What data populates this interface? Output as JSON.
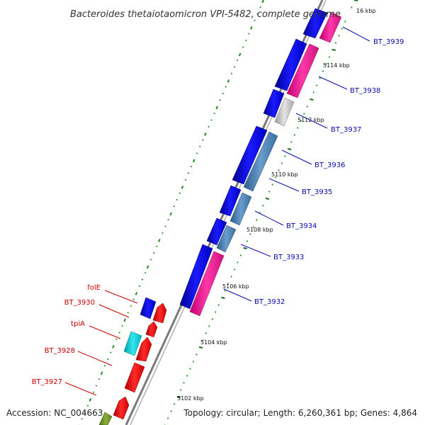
{
  "title": "Bacteroides thetaiotaomicron VPI-5482, complete genome",
  "footer": {
    "accession": "Accession: NC_004663",
    "summary": "Topology: circular; Length: 6,260,361 bp; Genes: 4,864"
  },
  "scale_labels": [
    {
      "text": "16 kbp",
      "t": 0.04
    },
    {
      "text": "5114 kbp",
      "t": 0.165
    },
    {
      "text": "5112 kbp",
      "t": 0.3
    },
    {
      "text": "5110 kbp",
      "t": 0.44
    },
    {
      "text": "5108 kbp",
      "t": 0.58
    },
    {
      "text": "5106 kbp",
      "t": 0.72
    },
    {
      "text": "5104 kbp",
      "t": 0.86
    },
    {
      "text": "5102 kbp",
      "t": 1.0
    }
  ],
  "genes": [
    {
      "name": "BT_3939",
      "side": "right",
      "t0": 0.0,
      "t1": 0.1,
      "color": "#0a0af0",
      "partner_color": "#ff1493"
    },
    {
      "name": "BT_3938",
      "side": "right",
      "t0": 0.11,
      "t1": 0.23,
      "color": "#0a0af0",
      "partner_color": "#ff1493"
    },
    {
      "name": "BT_3937",
      "side": "right",
      "t0": 0.24,
      "t1": 0.31,
      "color": "#0a0af0",
      "partner_color": "#c8c8c8"
    },
    {
      "name": "BT_3936",
      "side": "right",
      "t0": 0.33,
      "t1": 0.46,
      "color": "#0a0af0",
      "partner_color": "#4682b4"
    },
    {
      "name": "BT_3935",
      "side": "right",
      "t0": 0.47,
      "t1": 0.54,
      "color": "#0a0af0",
      "partner_color": "#4682b4"
    },
    {
      "name": "BT_3934",
      "side": "right",
      "t0": 0.55,
      "t1": 0.62,
      "color": "#0a0af0",
      "partner_color": "#4682b4"
    },
    {
      "name": "BT_3933",
      "side": "right",
      "t0": 0.63,
      "t1": 0.69,
      "color": "#0a0af0",
      "partner_color": "#4682b4"
    },
    {
      "name": "BT_3932",
      "side": "right",
      "t0": 0.7,
      "t1": 0.84,
      "color": "#0a0af0",
      "partner_color": "#ff1493"
    },
    {
      "name": "folE",
      "side": "left",
      "color": "#0a0af0"
    },
    {
      "name": "BT_3930",
      "side": "left",
      "color": "#ff0000"
    },
    {
      "name": "tpiA",
      "side": "left",
      "color": "#00ced1"
    },
    {
      "name": "BT_3928",
      "side": "left",
      "color": "#ff0000"
    },
    {
      "name": "BT_3927",
      "side": "left",
      "color": "#ff0000"
    }
  ]
}
